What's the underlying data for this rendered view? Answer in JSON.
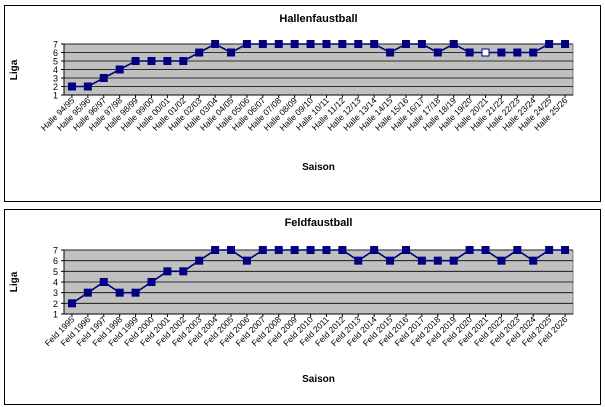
{
  "chart_data": [
    {
      "type": "line",
      "title": "Hallenfaustball",
      "xlabel": "Saison",
      "ylabel": "Liga",
      "ylim": [
        1,
        7
      ],
      "yticks": [
        "1",
        "2",
        "3",
        "4",
        "5",
        "6",
        "7"
      ],
      "grid": true,
      "plot_background": "#c0c0c0",
      "line_color": "#000080",
      "marker_color": "#000080",
      "hollow_marker_color": "#ffffff",
      "categories": [
        "Halle 94/95",
        "Halle 95/96",
        "Halle 96/97",
        "Halle 97/98",
        "Halle 98/99",
        "Halle 99/00",
        "Halle 00/01",
        "Halle 01/02",
        "Halle 02/03",
        "Halle 03/04",
        "Halle 04/05",
        "Halle 05/06",
        "Halle 06/07",
        "Halle 07/08",
        "Halle 08/09",
        "Halle 09/10",
        "Halle 10/11",
        "Halle 11/12",
        "Halle 12/13",
        "Halle 13/14",
        "Halle 14/15",
        "Halle 15/16",
        "Halle 16/17",
        "Halle 17/18",
        "Halle 18/19",
        "Halle 19/20",
        "Halle 20/21",
        "Halle 21/22",
        "Halle 22/23",
        "Halle 23/24",
        "Halle 24/25",
        "Halle 25/26"
      ],
      "values": [
        2,
        2,
        3,
        4,
        5,
        5,
        5,
        5,
        6,
        7,
        6,
        7,
        7,
        7,
        7,
        7,
        7,
        7,
        7,
        7,
        6,
        7,
        7,
        6,
        7,
        6,
        6,
        6,
        6,
        6,
        7,
        7
      ],
      "hollow_points": [
        "Halle 20/21"
      ]
    },
    {
      "type": "line",
      "title": "Feldfaustball",
      "xlabel": "Saison",
      "ylabel": "Liga",
      "ylim": [
        1,
        7
      ],
      "yticks": [
        "1",
        "2",
        "3",
        "4",
        "5",
        "6",
        "7"
      ],
      "grid": true,
      "plot_background": "#c0c0c0",
      "line_color": "#000080",
      "marker_color": "#000080",
      "categories": [
        "Feld 1995",
        "Feld 1996",
        "Feld 1997",
        "Feld 1998",
        "Feld 1999",
        "Feld 2000",
        "Feld 2001",
        "Feld 2002",
        "Feld 2003",
        "Feld 2004",
        "Feld 2005",
        "Feld 2006",
        "Feld 2007",
        "Feld 2008",
        "Feld 2009",
        "Feld 2010",
        "Feld 2011",
        "Feld 2012",
        "Feld 2013",
        "Feld 2014",
        "Feld 2015",
        "Feld 2016",
        "Feld 2017",
        "Feld 2018",
        "Feld 2019",
        "Feld 2020",
        "Feld 2021",
        "Feld 2022",
        "Feld 2023",
        "Feld 2024",
        "Feld 2025",
        "Feld 2026"
      ],
      "values": [
        2,
        3,
        4,
        3,
        3,
        4,
        5,
        5,
        6,
        7,
        7,
        6,
        7,
        7,
        7,
        7,
        7,
        7,
        6,
        7,
        6,
        7,
        6,
        6,
        6,
        7,
        7,
        6,
        7,
        6,
        7,
        7
      ],
      "hollow_points": []
    }
  ]
}
